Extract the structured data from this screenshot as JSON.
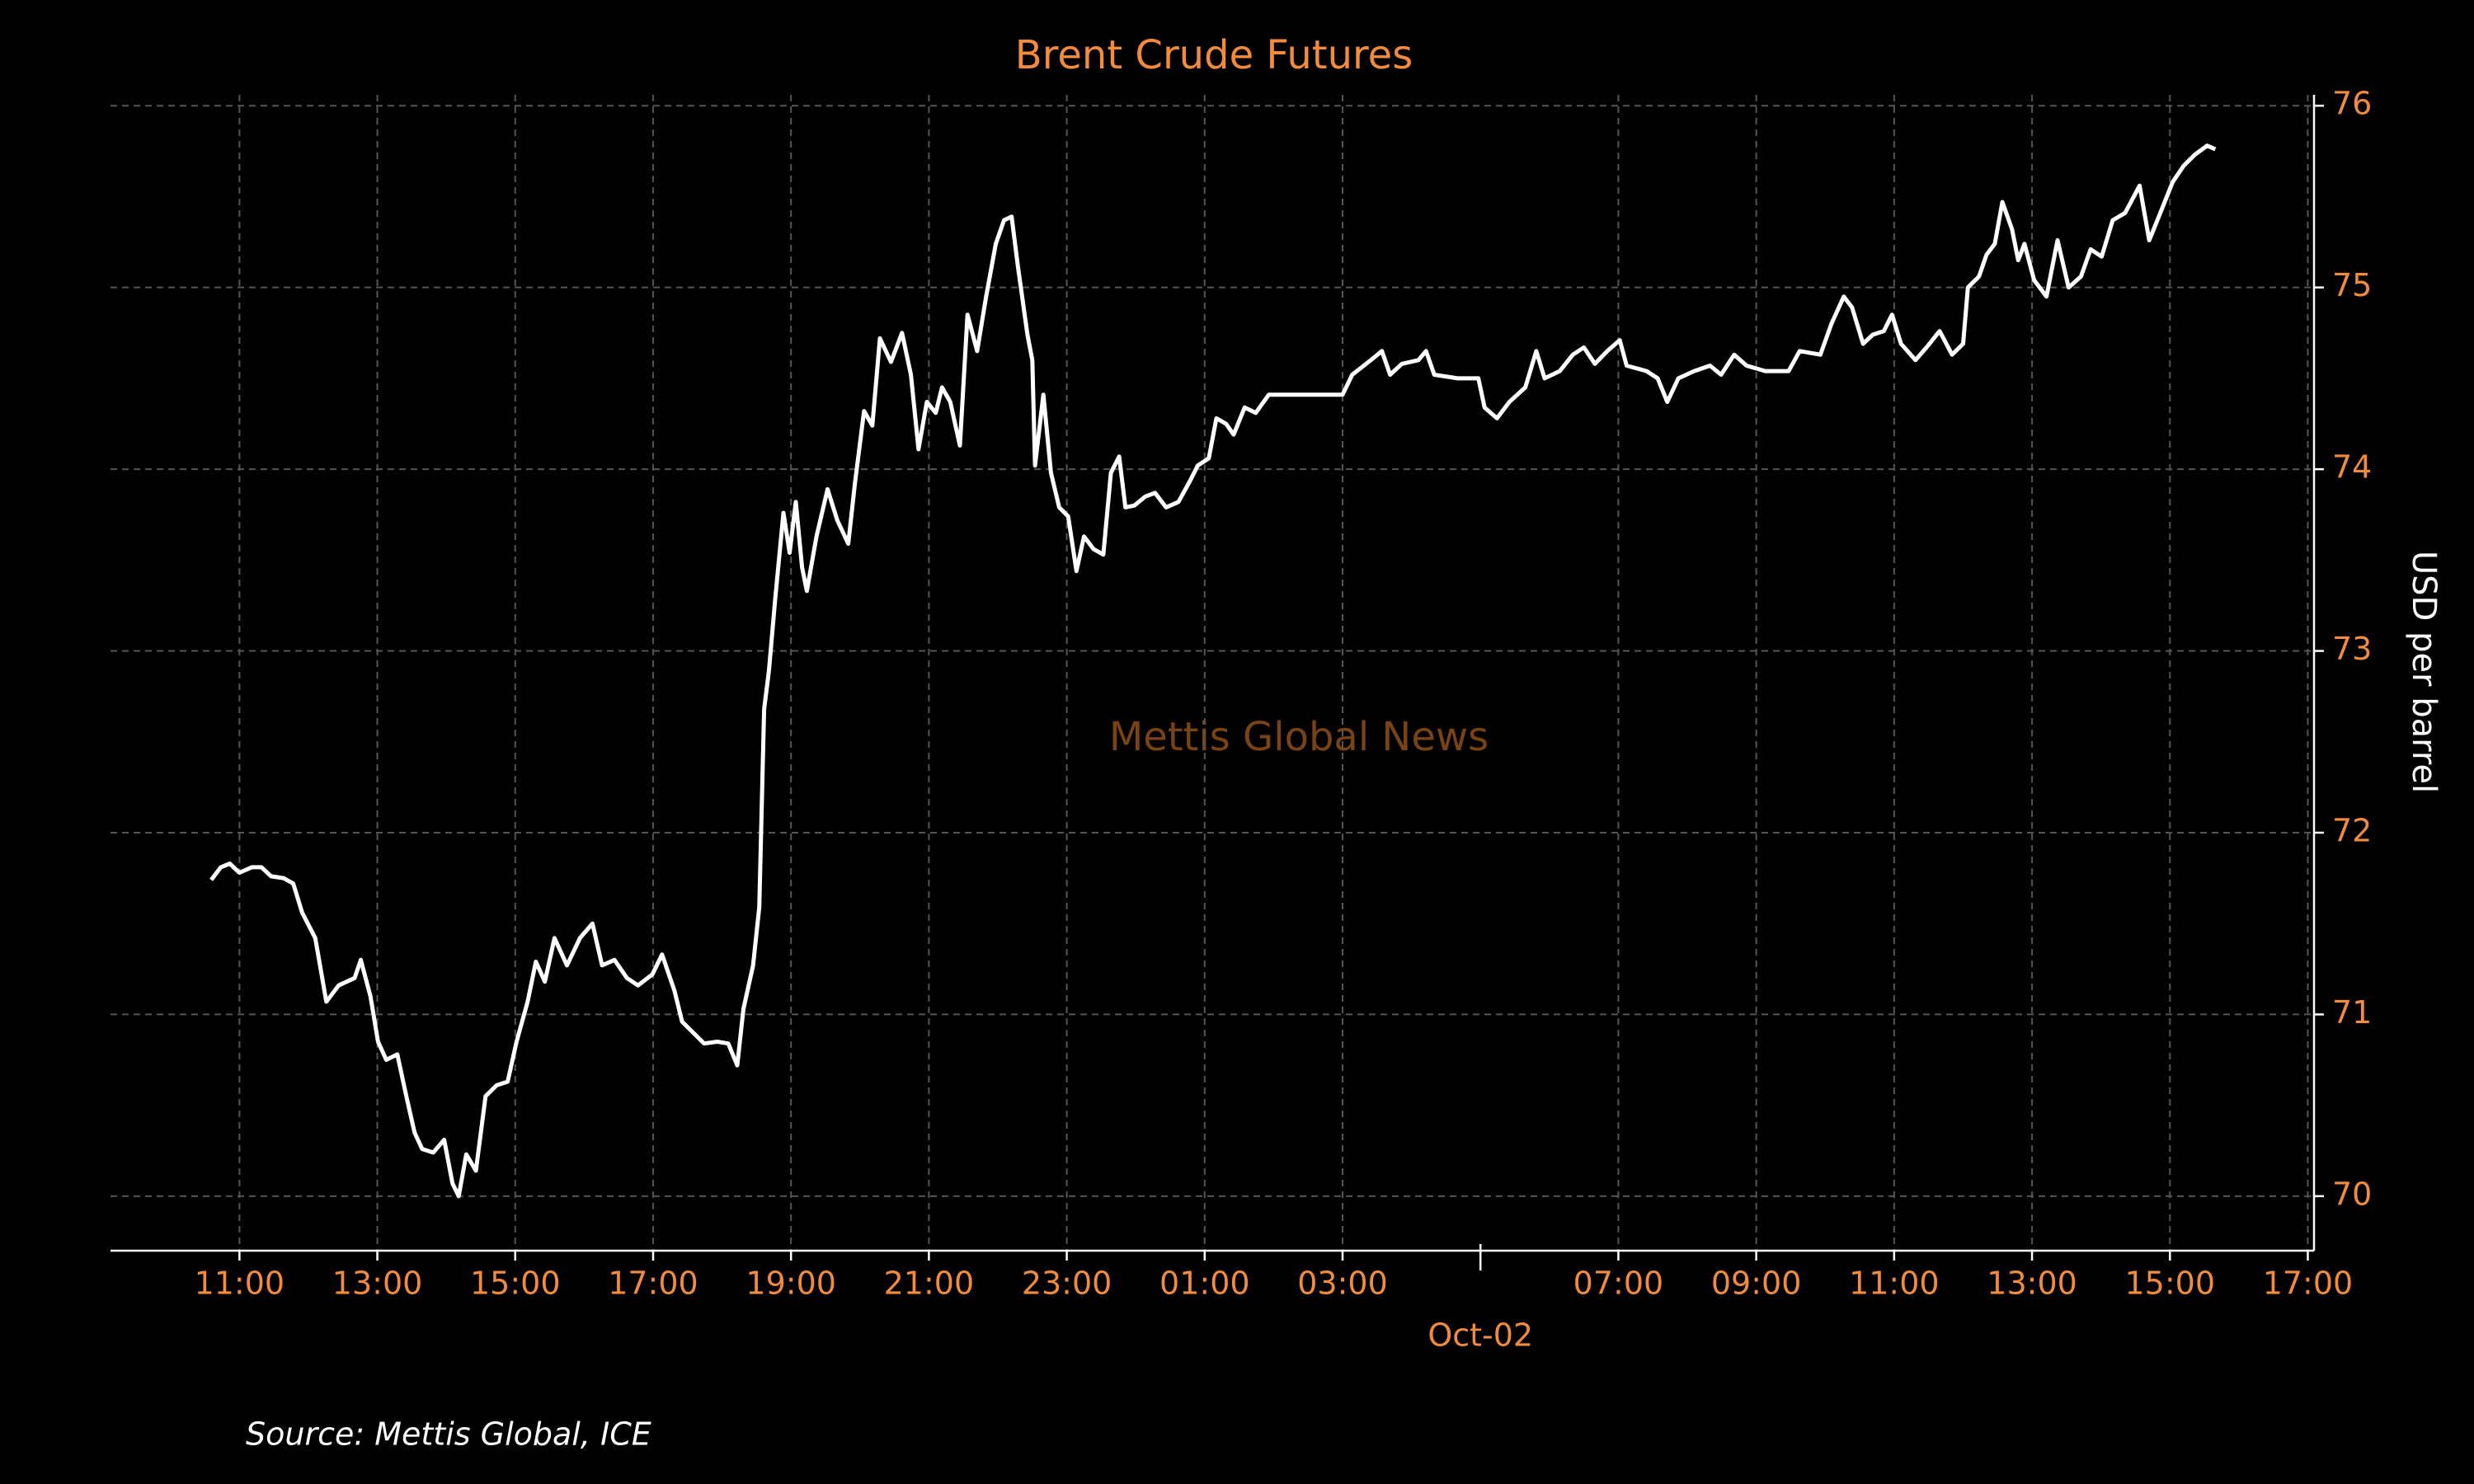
{
  "chart_data": {
    "type": "line",
    "title": "Brent Crude Futures",
    "y_label": "USD per barrel",
    "watermark": "Mettis Global News",
    "source": "Source: Mettis Global, ICE",
    "y_axis_side": "right",
    "grid": true,
    "series": [
      {
        "name": "Brent Crude Futures",
        "color": "#ffffff",
        "x": [
          10.59,
          10.73,
          10.86,
          11.0,
          11.18,
          11.32,
          11.46,
          11.64,
          11.78,
          11.91,
          12.1,
          12.26,
          12.44,
          12.67,
          12.76,
          12.9,
          13.01,
          13.13,
          13.29,
          13.42,
          13.54,
          13.65,
          13.81,
          13.97,
          14.09,
          14.18,
          14.29,
          14.43,
          14.57,
          14.73,
          14.89,
          15.02,
          15.18,
          15.3,
          15.43,
          15.57,
          15.75,
          15.94,
          16.12,
          16.26,
          16.44,
          16.62,
          16.78,
          16.99,
          17.13,
          17.31,
          17.42,
          17.58,
          17.74,
          17.93,
          18.09,
          18.22,
          18.31,
          18.45,
          18.54,
          18.61,
          18.68,
          18.77,
          18.89,
          18.98,
          19.07,
          19.16,
          19.23,
          19.37,
          19.53,
          19.67,
          19.83,
          19.93,
          20.06,
          20.18,
          20.29,
          20.45,
          20.61,
          20.74,
          20.85,
          20.97,
          21.1,
          21.19,
          21.31,
          21.45,
          21.56,
          21.7,
          21.83,
          21.97,
          22.09,
          22.2,
          22.29,
          22.43,
          22.5,
          22.54,
          22.66,
          22.77,
          22.89,
          23.02,
          23.14,
          23.25,
          23.39,
          23.53,
          23.64,
          23.76,
          23.85,
          23.98,
          24.14,
          24.28,
          24.44,
          24.62,
          24.78,
          24.9,
          25.06,
          25.17,
          25.31,
          25.42,
          25.58,
          25.74,
          25.93,
          27.0,
          27.14,
          27.41,
          27.57,
          27.69,
          27.86,
          28.1,
          28.21,
          28.33,
          28.67,
          28.97,
          29.06,
          29.24,
          29.42,
          29.65,
          29.81,
          29.93,
          30.15,
          30.34,
          30.5,
          30.66,
          30.84,
          31.02,
          31.12,
          31.41,
          31.57,
          31.71,
          31.87,
          32.1,
          32.33,
          32.49,
          32.68,
          32.86,
          33.13,
          33.47,
          33.63,
          33.93,
          34.09,
          34.27,
          34.39,
          34.55,
          34.69,
          34.85,
          34.97,
          35.1,
          35.31,
          35.47,
          35.66,
          35.84,
          36.0,
          36.07,
          36.23,
          36.34,
          36.46,
          36.57,
          36.71,
          36.8,
          36.89,
          37.03,
          37.21,
          37.37,
          37.53,
          37.71,
          37.85,
          38.01,
          38.17,
          38.35,
          38.56,
          38.7,
          38.86,
          39.04,
          39.2,
          39.36,
          39.54,
          39.66
        ],
        "values": [
          71.74,
          71.81,
          71.83,
          71.78,
          71.81,
          71.81,
          71.76,
          71.75,
          71.72,
          71.56,
          71.42,
          71.07,
          71.16,
          71.2,
          71.3,
          71.1,
          70.85,
          70.75,
          70.78,
          70.55,
          70.35,
          70.26,
          70.24,
          70.31,
          70.07,
          70.0,
          70.23,
          70.14,
          70.55,
          70.61,
          70.63,
          70.85,
          71.07,
          71.29,
          71.18,
          71.42,
          71.27,
          71.42,
          71.5,
          71.27,
          71.3,
          71.2,
          71.16,
          71.22,
          71.33,
          71.13,
          70.96,
          70.9,
          70.84,
          70.85,
          70.84,
          70.72,
          71.03,
          71.27,
          71.59,
          72.68,
          72.89,
          73.28,
          73.76,
          73.54,
          73.82,
          73.46,
          73.33,
          73.63,
          73.89,
          73.72,
          73.59,
          73.93,
          74.32,
          74.24,
          74.72,
          74.59,
          74.75,
          74.52,
          74.11,
          74.37,
          74.31,
          74.45,
          74.37,
          74.13,
          74.85,
          74.65,
          74.95,
          75.24,
          75.37,
          75.39,
          75.12,
          74.74,
          74.6,
          74.02,
          74.41,
          73.98,
          73.79,
          73.74,
          73.44,
          73.63,
          73.56,
          73.53,
          73.98,
          74.07,
          73.79,
          73.8,
          73.85,
          73.87,
          73.79,
          73.82,
          73.93,
          74.02,
          74.06,
          74.28,
          74.25,
          74.19,
          74.34,
          74.31,
          74.41,
          74.41,
          74.52,
          74.6,
          74.65,
          74.52,
          74.58,
          74.6,
          74.65,
          74.52,
          74.5,
          74.5,
          74.34,
          74.28,
          74.37,
          74.45,
          74.65,
          74.5,
          74.54,
          74.63,
          74.67,
          74.58,
          74.65,
          74.71,
          74.57,
          74.54,
          74.5,
          74.37,
          74.5,
          74.54,
          74.57,
          74.52,
          74.63,
          74.57,
          74.54,
          74.54,
          74.65,
          74.63,
          74.8,
          74.95,
          74.89,
          74.69,
          74.74,
          74.76,
          74.85,
          74.69,
          74.6,
          74.67,
          74.76,
          74.63,
          74.69,
          75.0,
          75.06,
          75.18,
          75.24,
          75.47,
          75.32,
          75.15,
          75.24,
          75.04,
          74.95,
          75.26,
          75.0,
          75.06,
          75.21,
          75.17,
          75.37,
          75.41,
          75.56,
          75.26,
          75.41,
          75.58,
          75.67,
          75.73,
          75.78,
          75.76
        ]
      }
    ],
    "xlim": [
      9.13,
      41.09
    ],
    "ylim": [
      69.7,
      76.06
    ],
    "yticks": [
      70,
      71,
      72,
      73,
      74,
      75,
      76
    ],
    "xticks": [
      {
        "value": 11,
        "label": "11:00"
      },
      {
        "value": 13,
        "label": "13:00"
      },
      {
        "value": 15,
        "label": "15:00"
      },
      {
        "value": 17,
        "label": "17:00"
      },
      {
        "value": 19,
        "label": "19:00"
      },
      {
        "value": 21,
        "label": "21:00"
      },
      {
        "value": 23,
        "label": "23:00"
      },
      {
        "value": 25,
        "label": "01:00"
      },
      {
        "value": 27,
        "label": "03:00"
      },
      {
        "value": 31,
        "label": "07:00"
      },
      {
        "value": 33,
        "label": "09:00"
      },
      {
        "value": 35,
        "label": "11:00"
      },
      {
        "value": 37,
        "label": "13:00"
      },
      {
        "value": 39,
        "label": "15:00"
      },
      {
        "value": 41,
        "label": "17:00"
      }
    ],
    "x_major_ticks": [
      {
        "value": 29,
        "label": "Oct-02"
      }
    ]
  }
}
